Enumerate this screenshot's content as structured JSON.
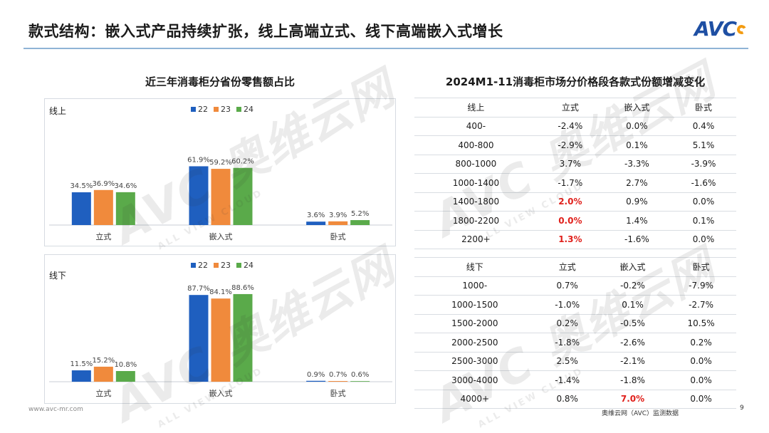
{
  "slide": {
    "title": "款式结构：嵌入式产品持续扩张，线上高端立式、线下高端嵌入式增长",
    "logo": "AVC",
    "footer_url": "www.avc-mr.com",
    "source": "奥维云网（AVC）监测数据",
    "page_number": "9",
    "watermark_text": "AVC 奥维云网",
    "watermark_sub": "ALL VIEW CLOUD"
  },
  "left_section": {
    "title": "近三年消毒柜分省份零售额占比"
  },
  "right_section": {
    "title": "2024M1-11消毒柜市场分价格段各款式份额增减变化"
  },
  "colors": {
    "s22": "#1f5fbf",
    "s23": "#f08a3c",
    "s24": "#5aaa4a",
    "highlight": "#e0201b"
  },
  "chart_data": [
    {
      "type": "bar",
      "panel_label": "线上",
      "categories": [
        "立式",
        "嵌入式",
        "卧式"
      ],
      "series": [
        {
          "name": "22",
          "values": [
            34.5,
            61.9,
            3.6
          ],
          "labels": [
            "34.5%",
            "61.9%",
            "3.6%"
          ]
        },
        {
          "name": "23",
          "values": [
            36.9,
            59.2,
            3.9
          ],
          "labels": [
            "36.9%",
            "59.2%",
            "3.9%"
          ]
        },
        {
          "name": "24",
          "values": [
            34.6,
            60.2,
            5.2
          ],
          "labels": [
            "34.6%",
            "60.2%",
            "5.2%"
          ]
        }
      ],
      "ylim": [
        0,
        100
      ]
    },
    {
      "type": "bar",
      "panel_label": "线下",
      "categories": [
        "立式",
        "嵌入式",
        "卧式"
      ],
      "series": [
        {
          "name": "22",
          "values": [
            11.5,
            87.7,
            0.9
          ],
          "labels": [
            "11.5%",
            "87.7%",
            "0.9%"
          ]
        },
        {
          "name": "23",
          "values": [
            15.2,
            84.1,
            0.7
          ],
          "labels": [
            "15.2%",
            "84.1%",
            "0.7%"
          ]
        },
        {
          "name": "24",
          "values": [
            10.8,
            88.6,
            0.6
          ],
          "labels": [
            "10.8%",
            "88.6%",
            "0.6%"
          ]
        }
      ],
      "ylim": [
        0,
        100
      ]
    }
  ],
  "tables": [
    {
      "header": [
        "线上",
        "立式",
        "嵌入式",
        "卧式"
      ],
      "rows": [
        {
          "cells": [
            "400-",
            "-2.4%",
            "0.0%",
            "0.4%"
          ],
          "highlight": []
        },
        {
          "cells": [
            "400-800",
            "-2.9%",
            "0.1%",
            "5.1%"
          ],
          "highlight": []
        },
        {
          "cells": [
            "800-1000",
            "3.7%",
            "-3.3%",
            "-3.9%"
          ],
          "highlight": []
        },
        {
          "cells": [
            "1000-1400",
            "-1.7%",
            "2.7%",
            "-1.6%"
          ],
          "highlight": []
        },
        {
          "cells": [
            "1400-1800",
            "2.0%",
            "0.9%",
            "0.0%"
          ],
          "highlight": [
            1
          ]
        },
        {
          "cells": [
            "1800-2200",
            "0.0%",
            "1.4%",
            "0.1%"
          ],
          "highlight": [
            1
          ]
        },
        {
          "cells": [
            "2200+",
            "1.3%",
            "-1.6%",
            "0.0%"
          ],
          "highlight": [
            1
          ]
        }
      ]
    },
    {
      "header": [
        "线下",
        "立式",
        "嵌入式",
        "卧式"
      ],
      "rows": [
        {
          "cells": [
            "1000-",
            "0.7%",
            "-0.2%",
            "-7.9%"
          ],
          "highlight": []
        },
        {
          "cells": [
            "1000-1500",
            "-1.0%",
            "0.1%",
            "-2.7%"
          ],
          "highlight": []
        },
        {
          "cells": [
            "1500-2000",
            "0.2%",
            "-0.5%",
            "10.5%"
          ],
          "highlight": []
        },
        {
          "cells": [
            "2000-2500",
            "-1.8%",
            "-2.6%",
            "0.2%"
          ],
          "highlight": []
        },
        {
          "cells": [
            "2500-3000",
            "2.5%",
            "-2.1%",
            "0.0%"
          ],
          "highlight": []
        },
        {
          "cells": [
            "3000-4000",
            "-1.4%",
            "-1.8%",
            "0.0%"
          ],
          "highlight": []
        },
        {
          "cells": [
            "4000+",
            "0.8%",
            "7.0%",
            "0.0%"
          ],
          "highlight": [
            2
          ]
        }
      ]
    }
  ]
}
